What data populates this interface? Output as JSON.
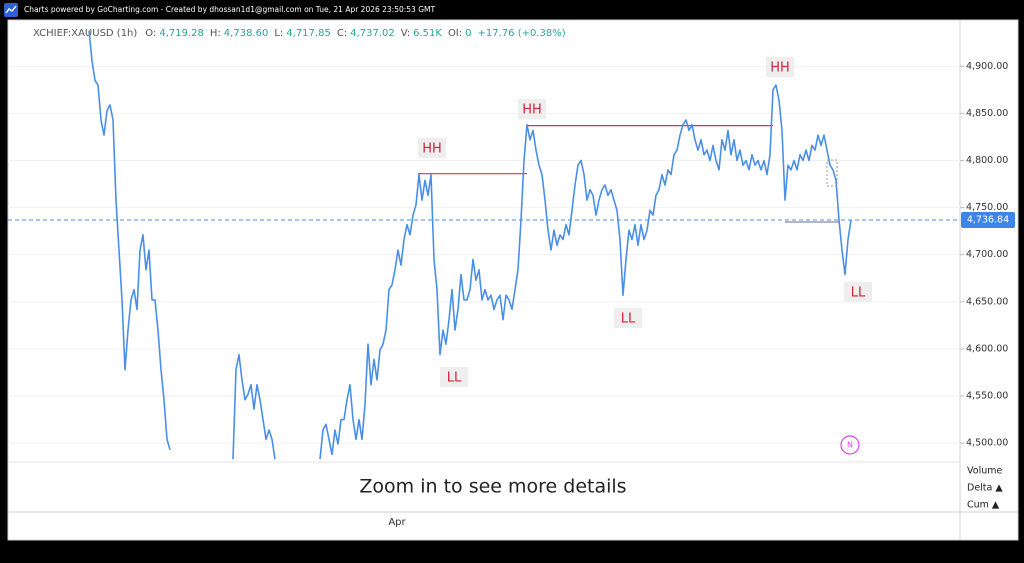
{
  "header": "Charts powered by GoCharting.com - Created by dhossan1d1@gmail.com on Tue, 21 Apr 2026 23:50:53 GMT",
  "chart_data": {
    "type": "line",
    "legend": {
      "symbol": "XCHIEF:XAUUSD (1h)",
      "fields": [
        {
          "label": "O:",
          "value": "4,719.28"
        },
        {
          "label": "H:",
          "value": "4,738.60"
        },
        {
          "label": "L:",
          "value": "4,717.85"
        },
        {
          "label": "C:",
          "value": "4,737.02"
        },
        {
          "label": "V:",
          "value": "6.51K"
        },
        {
          "label": "OI:",
          "value": "0"
        }
      ],
      "change": "+17.76 (+0.38%)"
    },
    "x_label": "Apr",
    "ylim": [
      4480,
      4947
    ],
    "yticks": [
      {
        "value": 4500,
        "label": "4,500.00"
      },
      {
        "value": 4550,
        "label": "4,550.00"
      },
      {
        "value": 4600,
        "label": "4,600.00"
      },
      {
        "value": 4650,
        "label": "4,650.00"
      },
      {
        "value": 4700,
        "label": "4,700.00"
      },
      {
        "value": 4750,
        "label": "4,750.00"
      },
      {
        "value": 4800,
        "label": "4,800.00"
      },
      {
        "value": 4850,
        "label": "4,850.00"
      },
      {
        "value": 4900,
        "label": "4,900.00"
      }
    ],
    "grid": true,
    "color": "#4a8fe7",
    "last_price": {
      "value": 4736.84,
      "label": "4,736.84"
    },
    "levels": [
      {
        "value": 4786,
        "color": "#e0314b"
      },
      {
        "value": 4837,
        "color": "#e0314b"
      }
    ],
    "annotations": [
      "HH",
      "HH",
      "HH",
      "LL",
      "LL",
      "LL"
    ],
    "message": "Zoom in to see more details",
    "indicators": [
      "Volume",
      "Delta ▲",
      "Cum ▲"
    ],
    "marker": "N",
    "values": [
      4938,
      4906,
      4885,
      4880,
      4843,
      4827,
      4853,
      4859,
      4843,
      4758,
      4705,
      4652,
      4578,
      4620,
      4652,
      4663,
      4642,
      4705,
      4721,
      4684,
      4705,
      4652,
      4652,
      4620,
      4578,
      4546,
      4504,
      4493,
      null,
      null,
      null,
      null,
      null,
      null,
      null,
      null,
      null,
      null,
      null,
      null,
      null,
      null,
      null,
      null,
      null,
      null,
      null,
      null,
      4483,
      4578,
      4594,
      4567,
      4546,
      4552,
      4562,
      4536,
      4562,
      4546,
      4525,
      4504,
      4514,
      4504,
      4483,
      null,
      null,
      null,
      null,
      null,
      null,
      null,
      null,
      null,
      null,
      null,
      null,
      null,
      null,
      4483,
      4514,
      4520,
      4504,
      4488,
      4514,
      4499,
      4525,
      4525,
      4546,
      4562,
      4525,
      4504,
      4525,
      4504,
      4541,
      4605,
      4562,
      4589,
      4567,
      4599,
      4605,
      4620,
      4663,
      4668,
      4684,
      4705,
      4689,
      4716,
      4732,
      4721,
      4742,
      4753,
      4785,
      4758,
      4779,
      4763,
      4785,
      4695,
      4663,
      4594,
      4620,
      4605,
      4631,
      4663,
      4620,
      4642,
      4679,
      4652,
      4652,
      4663,
      4695,
      4673,
      4684,
      4652,
      4663,
      4652,
      4657,
      4642,
      4652,
      4657,
      4631,
      4657,
      4652,
      4642,
      4663,
      4684,
      4737,
      4800,
      4838,
      4822,
      4832,
      4811,
      4795,
      4785,
      4758,
      4726,
      4705,
      4726,
      4710,
      4721,
      4716,
      4732,
      4721,
      4747,
      4774,
      4795,
      4800,
      4785,
      4758,
      4769,
      4763,
      4742,
      4758,
      4769,
      4774,
      4763,
      4769,
      4758,
      4747,
      4716,
      4657,
      4695,
      4726,
      4716,
      4732,
      4710,
      4732,
      4716,
      4726,
      4747,
      4742,
      4763,
      4769,
      4785,
      4774,
      4790,
      4785,
      4806,
      4811,
      4827,
      4838,
      4843,
      4832,
      4838,
      4822,
      4811,
      4822,
      4806,
      4811,
      4800,
      4816,
      4800,
      4790,
      4822,
      4811,
      4832,
      4806,
      4822,
      4800,
      4811,
      4795,
      4800,
      4790,
      4806,
      4795,
      4800,
      4790,
      4800,
      4785,
      4806,
      4875,
      4880,
      4864,
      4832,
      4758,
      4795,
      4790,
      4800,
      4790,
      4806,
      4800,
      4811,
      4800,
      4816,
      4811,
      4827,
      4816,
      4827,
      4811,
      4795,
      4790,
      4779,
      4737,
      4705,
      4679,
      4716,
      4737
    ]
  }
}
